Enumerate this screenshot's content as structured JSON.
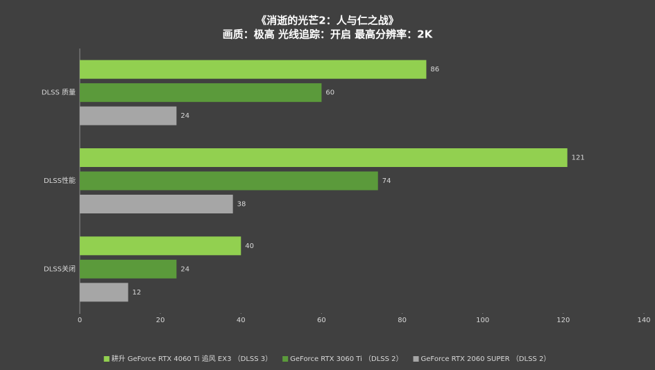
{
  "chart_data": {
    "type": "hbar",
    "title": "《消逝的光芒2：人与仁之战》",
    "subtitle": "画质：极高  光线追踪：开启  最高分辨率：2K",
    "categories": [
      "DLSS 质量",
      "DLSS性能",
      "DLSS关闭"
    ],
    "series": [
      {
        "name": "耕升 GeForce RTX 4060 Ti 追风 EX3 （DLSS 3）",
        "color": "#92d050",
        "values": [
          86,
          121,
          40
        ]
      },
      {
        "name": "GeForce RTX 3060 Ti （DLSS 2）",
        "color": "#5b9a3b",
        "values": [
          60,
          74,
          24
        ]
      },
      {
        "name": "GeForce RTX 2060 SUPER （DLSS 2）",
        "color": "#a6a6a6",
        "values": [
          24,
          38,
          12
        ]
      }
    ],
    "xlim": [
      0,
      140
    ],
    "xticks": [
      0,
      20,
      40,
      60,
      80,
      100,
      120,
      140
    ],
    "grid": false,
    "legend": "bottom"
  }
}
